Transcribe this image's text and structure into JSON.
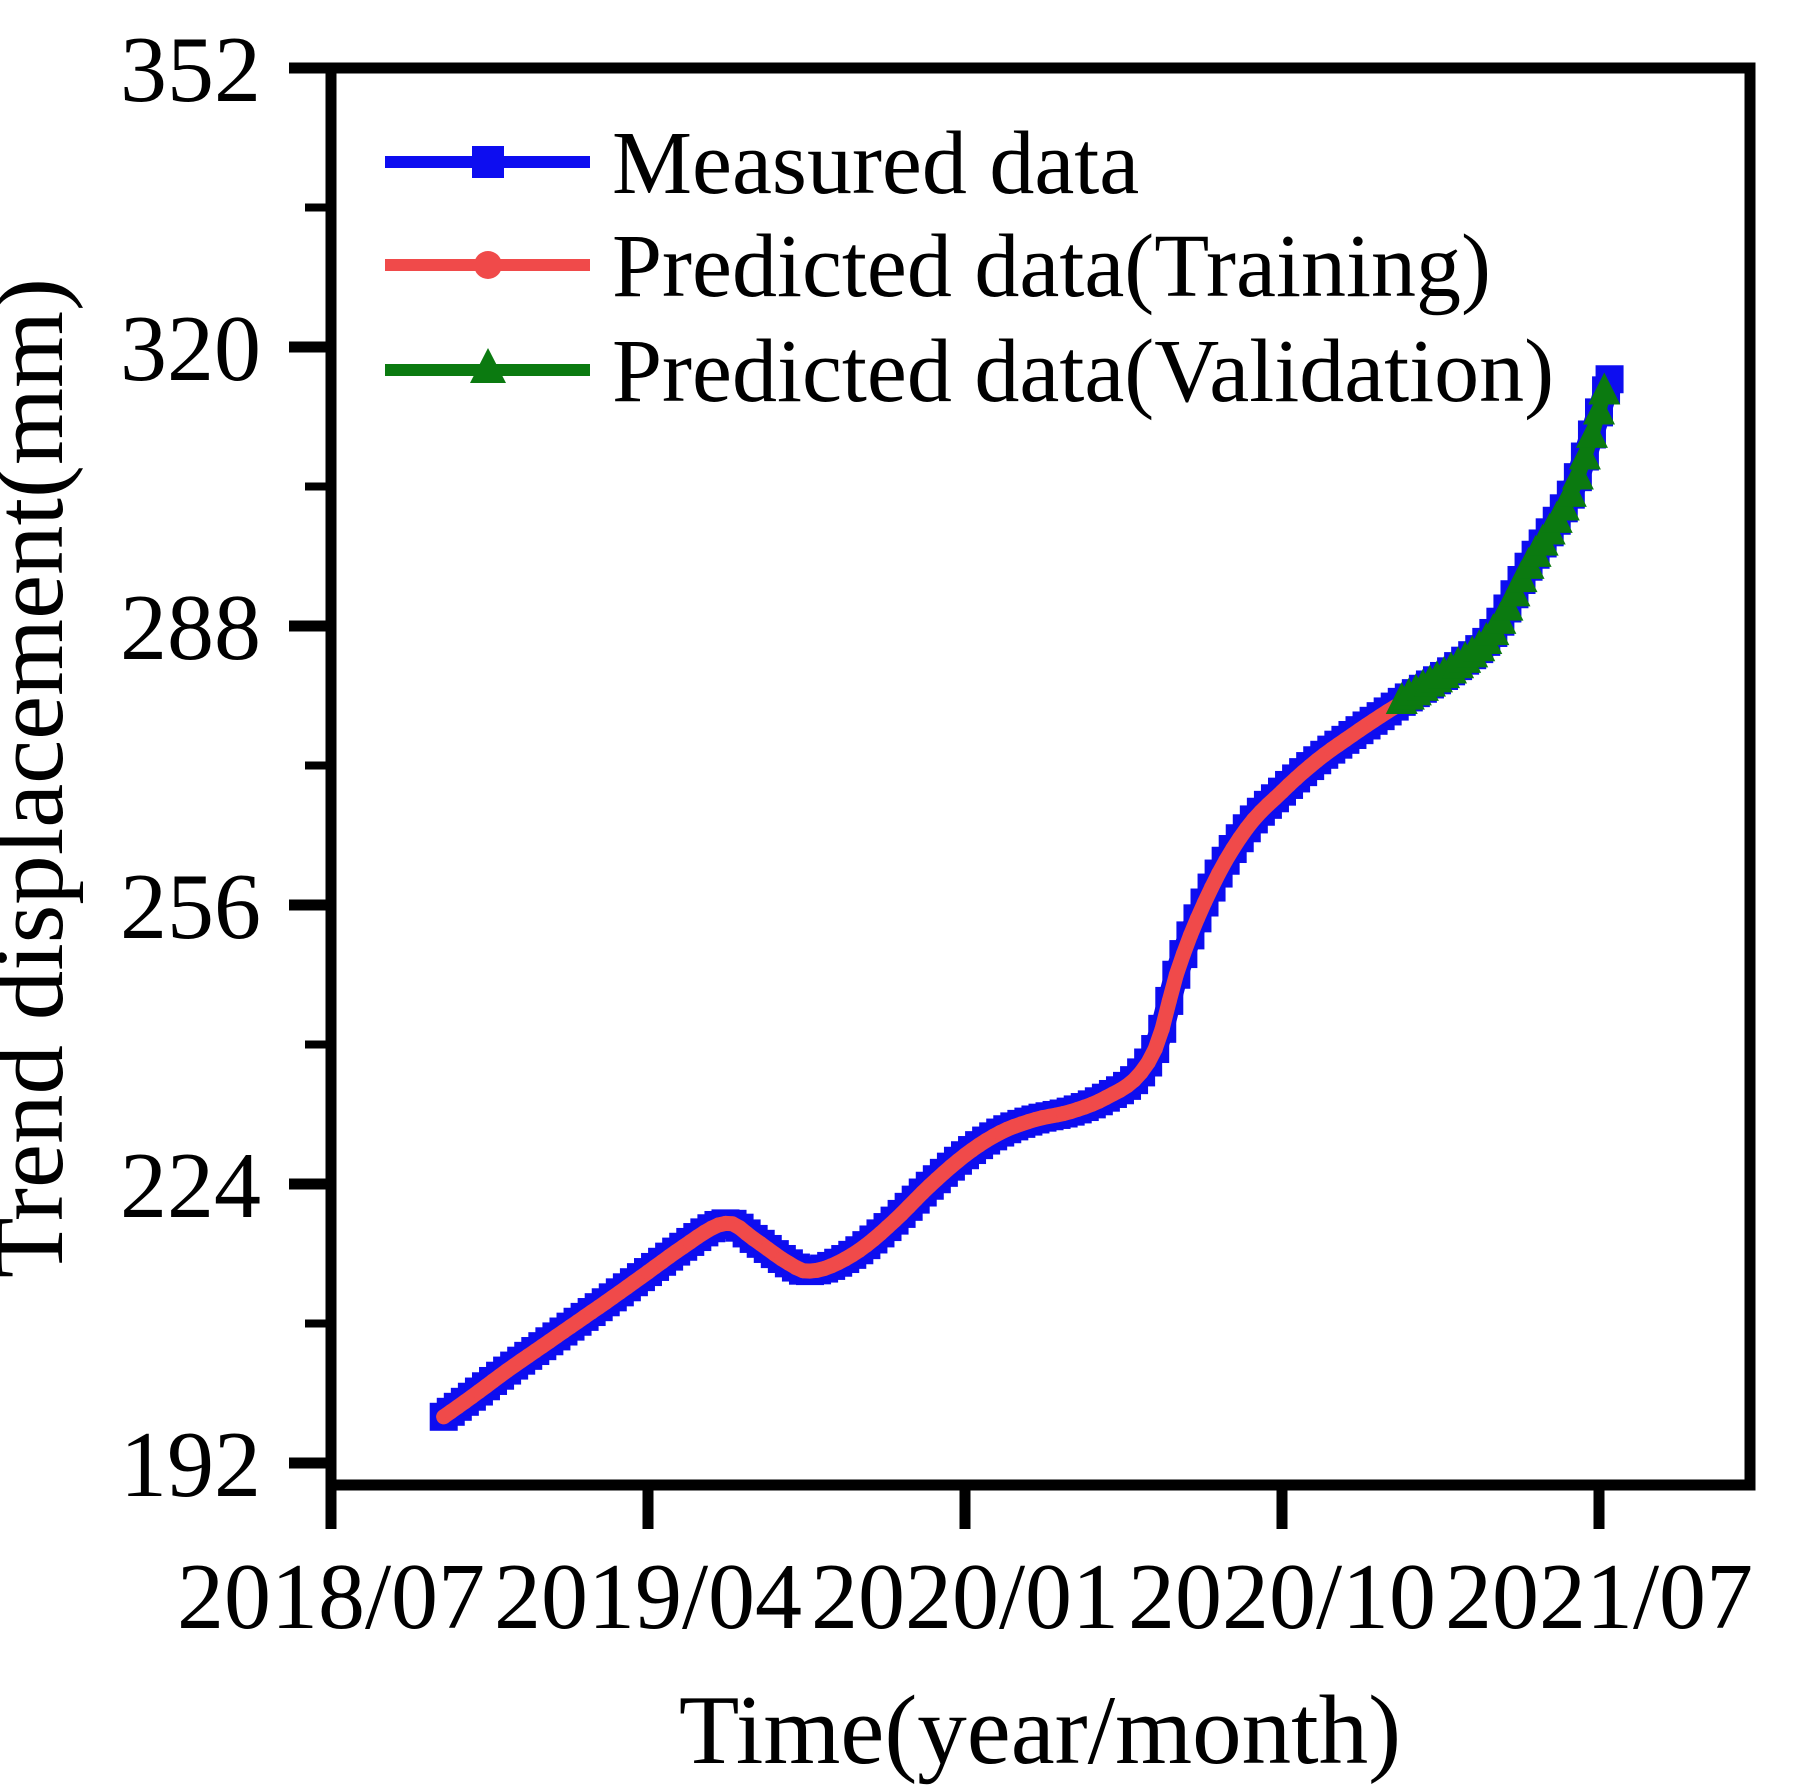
{
  "chart_data": {
    "type": "line",
    "title": "",
    "xlabel": "Time(year/month)",
    "ylabel": "Trend displacement(mm)",
    "background": "#ffffff",
    "axis_color": "#000000",
    "x_axis": {
      "unit": "year/month",
      "date_of_month_zero": "2018/07",
      "tick_labels": [
        "2018/07",
        "2019/04",
        "2020/01",
        "2020/10",
        "2021/07"
      ],
      "tick_month_offsets": [
        0,
        9,
        18,
        27,
        36
      ],
      "range_month_offsets": [
        0,
        40.3
      ],
      "minor_ticks": false
    },
    "y_axis": {
      "unit": "mm",
      "major_tick_labels": [
        "352",
        "320",
        "288",
        "256",
        "224",
        "192"
      ],
      "major_ticks": [
        352,
        320,
        288,
        256,
        224,
        192
      ],
      "minor_ticks": [
        336,
        304,
        272,
        240,
        208
      ],
      "range": [
        189.4,
        352.0
      ],
      "grid": false
    },
    "legend": {
      "position": "top-left-inside",
      "items": [
        {
          "label": "Measured data",
          "color": "#0d0df0",
          "marker": "square"
        },
        {
          "label": "Predicted data(Training)",
          "color": "#f04a4a",
          "marker": "circle"
        },
        {
          "label": "Predicted data(Validation)",
          "color": "#0b7a10",
          "marker": "triangle"
        }
      ]
    },
    "series": [
      {
        "name": "Measured data",
        "color": "#0d0df0",
        "marker": "square",
        "marker_size": 28,
        "line_width": 24,
        "points_month_value": [
          [
            3.2,
            197.3
          ],
          [
            4,
            199.6
          ],
          [
            5,
            202.6
          ],
          [
            6,
            205.4
          ],
          [
            7,
            208.2
          ],
          [
            8,
            211.0
          ],
          [
            9,
            213.9
          ],
          [
            10,
            216.8
          ],
          [
            11,
            219.3
          ],
          [
            11.3,
            219.5
          ],
          [
            12,
            217.7
          ],
          [
            13,
            214.9
          ],
          [
            13.5,
            214.0
          ],
          [
            14,
            214.3
          ],
          [
            15,
            216.4
          ],
          [
            16,
            219.8
          ],
          [
            17,
            223.8
          ],
          [
            18,
            227.3
          ],
          [
            19,
            229.9
          ],
          [
            20,
            231.4
          ],
          [
            21,
            232.3
          ],
          [
            22,
            233.9
          ],
          [
            23,
            236.8
          ],
          [
            23.5,
            240.5
          ],
          [
            24,
            248.0
          ],
          [
            25,
            258.0
          ],
          [
            26,
            264.8
          ],
          [
            27,
            269.0
          ],
          [
            28,
            272.6
          ],
          [
            29,
            275.5
          ],
          [
            30,
            278.2
          ],
          [
            30.4,
            279.3
          ],
          [
            31,
            280.8
          ],
          [
            32,
            283.4
          ],
          [
            33,
            287.2
          ],
          [
            34,
            294.8
          ],
          [
            35,
            301.5
          ],
          [
            35.3,
            304.0
          ],
          [
            36,
            312.5
          ],
          [
            36.3,
            316.3
          ]
        ]
      },
      {
        "name": "Predicted data(Training)",
        "color": "#f04a4a",
        "marker": "circle",
        "marker_size": 15,
        "line_width": 15,
        "points_month_value": [
          [
            3.2,
            197.3
          ],
          [
            4,
            199.6
          ],
          [
            5,
            202.6
          ],
          [
            6,
            205.4
          ],
          [
            7,
            208.2
          ],
          [
            8,
            211.0
          ],
          [
            9,
            213.9
          ],
          [
            10,
            216.8
          ],
          [
            11,
            219.3
          ],
          [
            11.3,
            219.5
          ],
          [
            12,
            217.7
          ],
          [
            13,
            214.9
          ],
          [
            13.5,
            214.0
          ],
          [
            14,
            214.3
          ],
          [
            15,
            216.4
          ],
          [
            16,
            219.8
          ],
          [
            17,
            223.8
          ],
          [
            18,
            227.3
          ],
          [
            19,
            229.9
          ],
          [
            20,
            231.4
          ],
          [
            21,
            232.3
          ],
          [
            22,
            233.9
          ],
          [
            23,
            236.8
          ],
          [
            23.5,
            240.5
          ],
          [
            24,
            248.0
          ],
          [
            25,
            258.0
          ],
          [
            26,
            264.8
          ],
          [
            27,
            269.0
          ],
          [
            28,
            272.6
          ],
          [
            29,
            275.5
          ],
          [
            30,
            278.2
          ],
          [
            30.45,
            279.3
          ]
        ]
      },
      {
        "name": "Predicted data(Validation)",
        "color": "#0b7a10",
        "marker": "triangle",
        "marker_size": 32,
        "line_width": 14,
        "points_month_value": [
          [
            30.4,
            279.3
          ],
          [
            31,
            280.8
          ],
          [
            32,
            283.4
          ],
          [
            33,
            287.2
          ],
          [
            34,
            294.8
          ],
          [
            35,
            301.5
          ],
          [
            35.3,
            304.0
          ],
          [
            36,
            312.5
          ],
          [
            36.15,
            314.8
          ]
        ]
      }
    ]
  }
}
